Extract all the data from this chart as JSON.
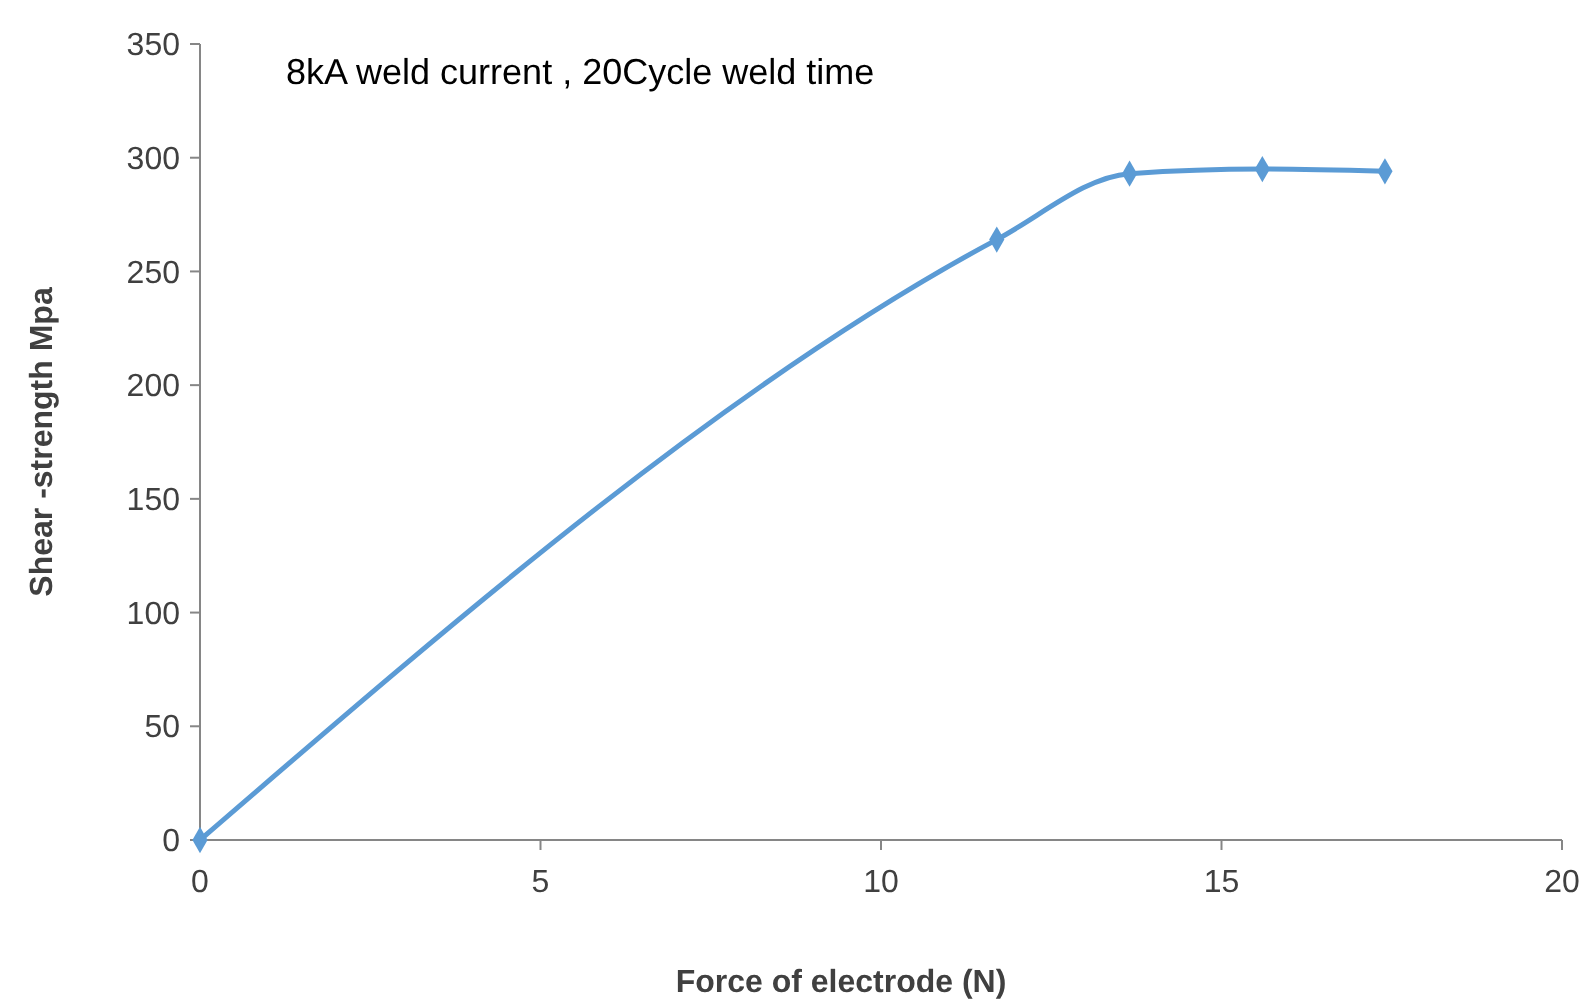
{
  "chart_data": {
    "type": "line",
    "xlabel": "Force of electrode (N)",
    "ylabel": "Shear -strength Mpa",
    "annotations": [
      "8kA weld current , 20Cycle weld time"
    ],
    "series": [
      {
        "color": "#5b9bd5",
        "x": [
          0,
          11.7,
          13.65,
          15.6,
          17.4
        ],
        "values": [
          0,
          264,
          293,
          295,
          294
        ]
      }
    ],
    "xlim": [
      0,
      20
    ],
    "xticks": [
      0,
      5,
      10,
      15,
      20
    ],
    "ylim": [
      0,
      350
    ],
    "yticks": [
      0,
      50,
      100,
      150,
      200,
      250,
      300,
      350
    ],
    "grid": false,
    "marker": "diamond",
    "line_style": "solid"
  }
}
